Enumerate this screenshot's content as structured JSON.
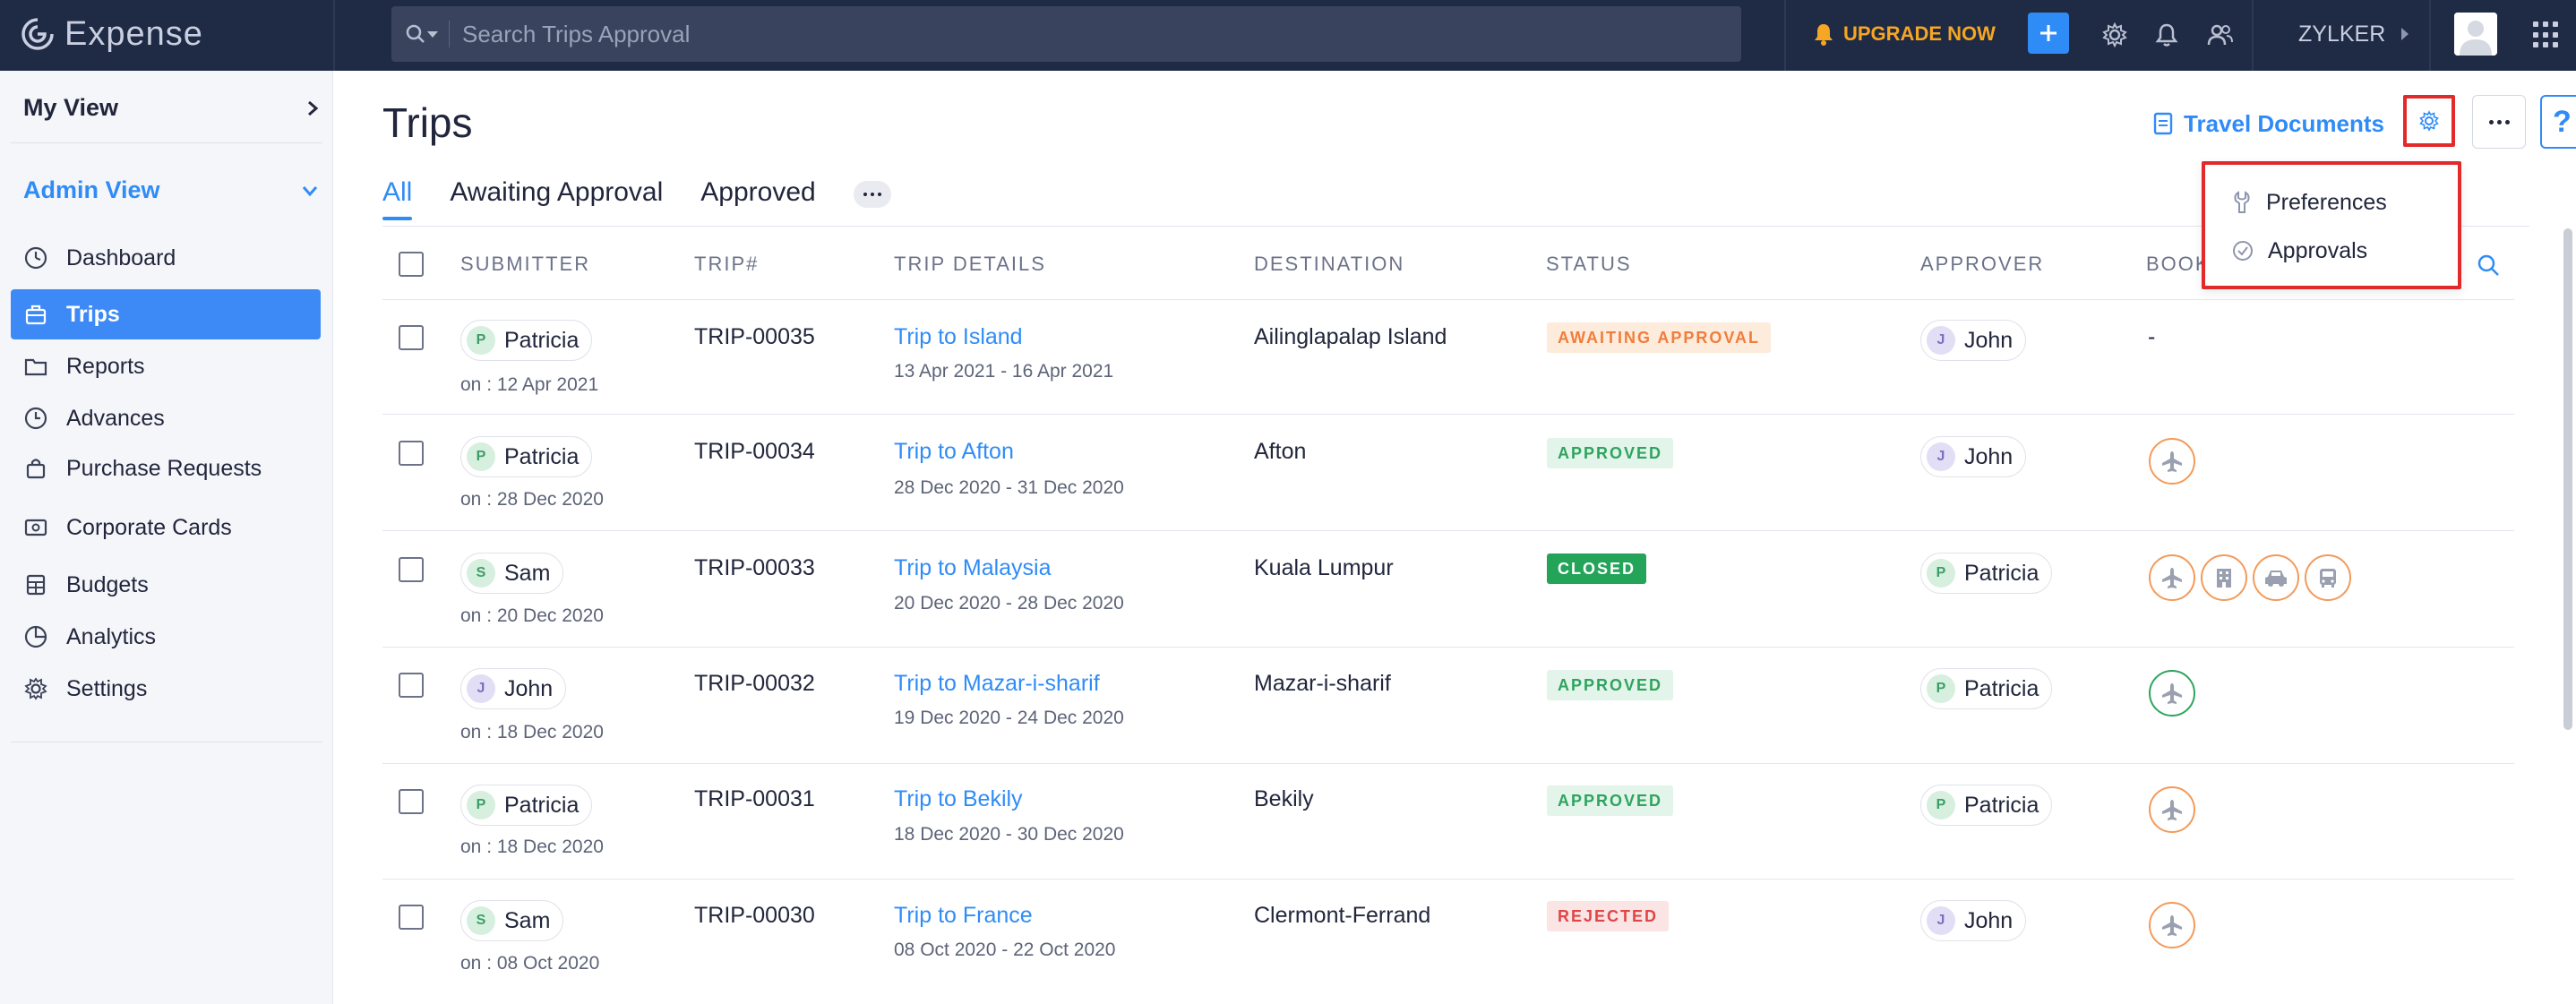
{
  "app": {
    "name": "Expense"
  },
  "search": {
    "placeholder": "Search Trips Approval"
  },
  "topbar": {
    "upgrade_label": "UPGRADE NOW",
    "org_name": "ZYLKER"
  },
  "sidebar": {
    "my_view": "My View",
    "admin_view": "Admin View",
    "items": [
      {
        "label": "Dashboard",
        "icon": "dashboard-icon"
      },
      {
        "label": "Trips",
        "icon": "trips-icon",
        "active": true
      },
      {
        "label": "Reports",
        "icon": "reports-icon"
      },
      {
        "label": "Advances",
        "icon": "advances-icon"
      },
      {
        "label": "Purchase Requests",
        "icon": "purchase-requests-icon"
      },
      {
        "label": "Corporate Cards",
        "icon": "corporate-cards-icon"
      },
      {
        "label": "Budgets",
        "icon": "budgets-icon"
      },
      {
        "label": "Analytics",
        "icon": "analytics-icon"
      },
      {
        "label": "Settings",
        "icon": "settings-icon"
      }
    ]
  },
  "page": {
    "title": "Trips",
    "travel_documents_label": "Travel Documents",
    "tabs": [
      {
        "label": "All",
        "active": true
      },
      {
        "label": "Awaiting Approval"
      },
      {
        "label": "Approved"
      }
    ]
  },
  "settings_menu": {
    "items": [
      {
        "label": "Preferences",
        "icon": "wrench-icon"
      },
      {
        "label": "Approvals",
        "icon": "check-circle-icon"
      }
    ]
  },
  "table": {
    "columns": [
      "SUBMITTER",
      "TRIP#",
      "TRIP DETAILS",
      "DESTINATION",
      "STATUS",
      "APPROVER",
      "BOOK"
    ],
    "rows": [
      {
        "submitter": "Patricia",
        "submitter_initial": "P",
        "submitted_on": "on : 12 Apr 2021",
        "trip_no": "TRIP-00035",
        "trip_name": "Trip to Island",
        "trip_dates": "13 Apr 2021 - 16 Apr 2021",
        "destination": "Ailinglapalap Island",
        "status": "AWAITING APPROVAL",
        "approver": "John",
        "approver_initial": "J",
        "booking": "-"
      },
      {
        "submitter": "Patricia",
        "submitter_initial": "P",
        "submitted_on": "on : 28 Dec 2020",
        "trip_no": "TRIP-00034",
        "trip_name": "Trip to Afton",
        "trip_dates": "28 Dec 2020 - 31 Dec 2020",
        "destination": "Afton",
        "status": "APPROVED",
        "approver": "John",
        "approver_initial": "J",
        "booking_icons": [
          "flight-icon"
        ]
      },
      {
        "submitter": "Sam",
        "submitter_initial": "S",
        "submitted_on": "on : 20 Dec 2020",
        "trip_no": "TRIP-00033",
        "trip_name": "Trip to Malaysia",
        "trip_dates": "20 Dec 2020 - 28 Dec 2020",
        "destination": "Kuala Lumpur",
        "status": "CLOSED",
        "approver": "Patricia",
        "approver_initial": "P",
        "booking_icons": [
          "flight-icon",
          "hotel-icon",
          "car-icon",
          "bus-icon"
        ]
      },
      {
        "submitter": "John",
        "submitter_initial": "J",
        "submitted_on": "on : 18 Dec 2020",
        "trip_no": "TRIP-00032",
        "trip_name": "Trip to Mazar-i-sharif",
        "trip_dates": "19 Dec 2020 - 24 Dec 2020",
        "destination": "Mazar-i-sharif",
        "status": "APPROVED",
        "approver": "Patricia",
        "approver_initial": "P",
        "booking_icons": [
          "flight-icon"
        ]
      },
      {
        "submitter": "Patricia",
        "submitter_initial": "P",
        "submitted_on": "on : 18 Dec 2020",
        "trip_no": "TRIP-00031",
        "trip_name": "Trip to Bekily",
        "trip_dates": "18 Dec 2020 - 30 Dec 2020",
        "destination": "Bekily",
        "status": "APPROVED",
        "approver": "Patricia",
        "approver_initial": "P",
        "booking_icons": [
          "flight-icon"
        ]
      },
      {
        "submitter": "Sam",
        "submitter_initial": "S",
        "submitted_on": "on : 08 Oct 2020",
        "trip_no": "TRIP-00030",
        "trip_name": "Trip to France",
        "trip_dates": "08 Oct 2020 - 22 Oct 2020",
        "destination": "Clermont-Ferrand",
        "status": "REJECTED",
        "approver": "John",
        "approver_initial": "J",
        "booking_icons": [
          "flight-icon"
        ]
      }
    ]
  },
  "colors": {
    "accent": "#2f8cf7",
    "topbar": "#1f2a44",
    "highlight": "#e22a2a",
    "upgrade": "#f5a623"
  }
}
